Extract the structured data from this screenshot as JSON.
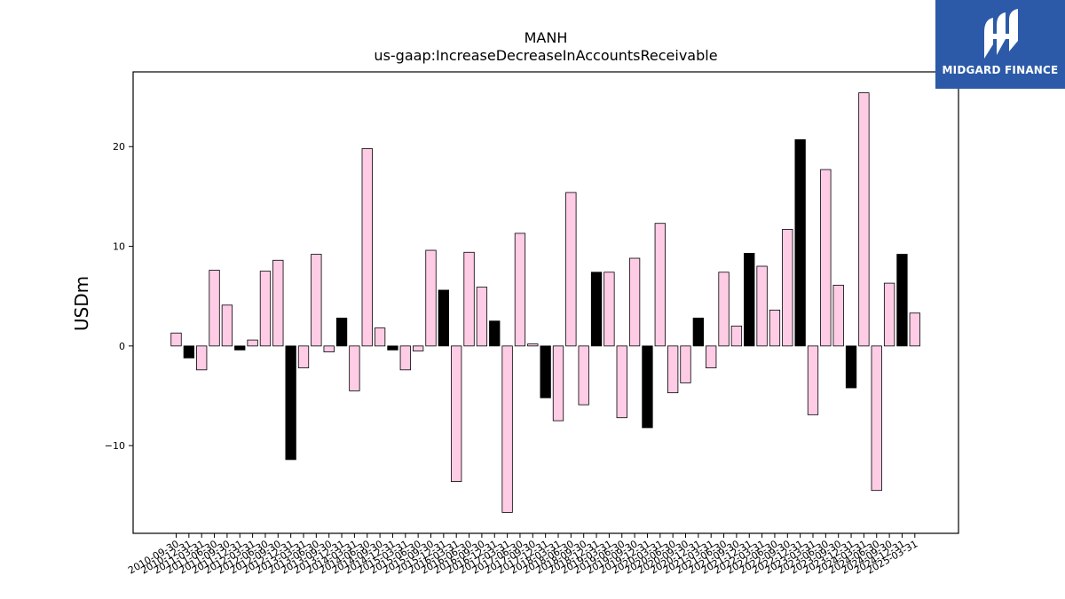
{
  "brand": {
    "name": "MIDGARD FINANCE",
    "logo_icon": "midgard-logo-icon",
    "bg_color": "#2c5aa8"
  },
  "chart_data": {
    "type": "bar",
    "title": "MANH",
    "subtitle": "us-gaap:IncreaseDecreaseInAccountsReceivable",
    "xlabel": "",
    "ylabel": "USDm",
    "ylim": [
      -18.8,
      27.5
    ],
    "yticks": [
      -10,
      0,
      10,
      20
    ],
    "grid": false,
    "colors": {
      "default": "#ffcce6",
      "q4": "#000000",
      "edge": "#000000"
    },
    "categories": [
      "2010-09-30",
      "2010-12-31",
      "2011-03-31",
      "2011-06-30",
      "2011-09-30",
      "2011-12-31",
      "2012-03-31",
      "2012-06-30",
      "2012-09-30",
      "2012-12-31",
      "2013-03-31",
      "2013-06-30",
      "2013-09-30",
      "2013-12-31",
      "2014-03-31",
      "2014-06-30",
      "2014-09-30",
      "2014-12-31",
      "2015-03-31",
      "2015-06-30",
      "2015-09-30",
      "2015-12-31",
      "2016-03-31",
      "2016-06-30",
      "2016-09-30",
      "2016-12-31",
      "2017-03-31",
      "2017-06-30",
      "2017-09-30",
      "2017-12-31",
      "2018-03-31",
      "2018-06-30",
      "2018-09-30",
      "2018-12-31",
      "2019-03-31",
      "2019-06-30",
      "2019-09-30",
      "2019-12-31",
      "2020-03-31",
      "2020-06-30",
      "2020-09-30",
      "2020-12-31",
      "2021-03-31",
      "2021-06-30",
      "2021-09-30",
      "2021-12-31",
      "2022-03-31",
      "2022-06-30",
      "2022-09-30",
      "2022-12-31",
      "2023-03-31",
      "2023-06-30",
      "2023-09-30",
      "2023-12-31",
      "2024-03-31",
      "2024-06-30",
      "2024-09-30",
      "2024-12-31",
      "2025-03-31"
    ],
    "values": [
      1.3,
      -1.2,
      -2.4,
      7.6,
      4.1,
      -0.4,
      0.6,
      7.5,
      8.6,
      -11.4,
      -2.2,
      9.2,
      -0.6,
      2.8,
      -4.5,
      19.8,
      1.8,
      -0.4,
      -2.4,
      -0.5,
      9.6,
      5.6,
      -13.6,
      9.4,
      5.9,
      2.5,
      -16.7,
      11.3,
      0.2,
      -5.2,
      -7.5,
      15.4,
      -5.9,
      7.4,
      7.4,
      -7.2,
      8.8,
      -8.2,
      12.3,
      -4.7,
      -3.7,
      2.8,
      -2.2,
      7.4,
      2.0,
      9.3,
      8.0,
      3.6,
      11.7,
      20.7,
      -6.9,
      17.7,
      6.1,
      -4.2,
      25.4,
      -14.5,
      6.3,
      9.2,
      3.3
    ]
  }
}
